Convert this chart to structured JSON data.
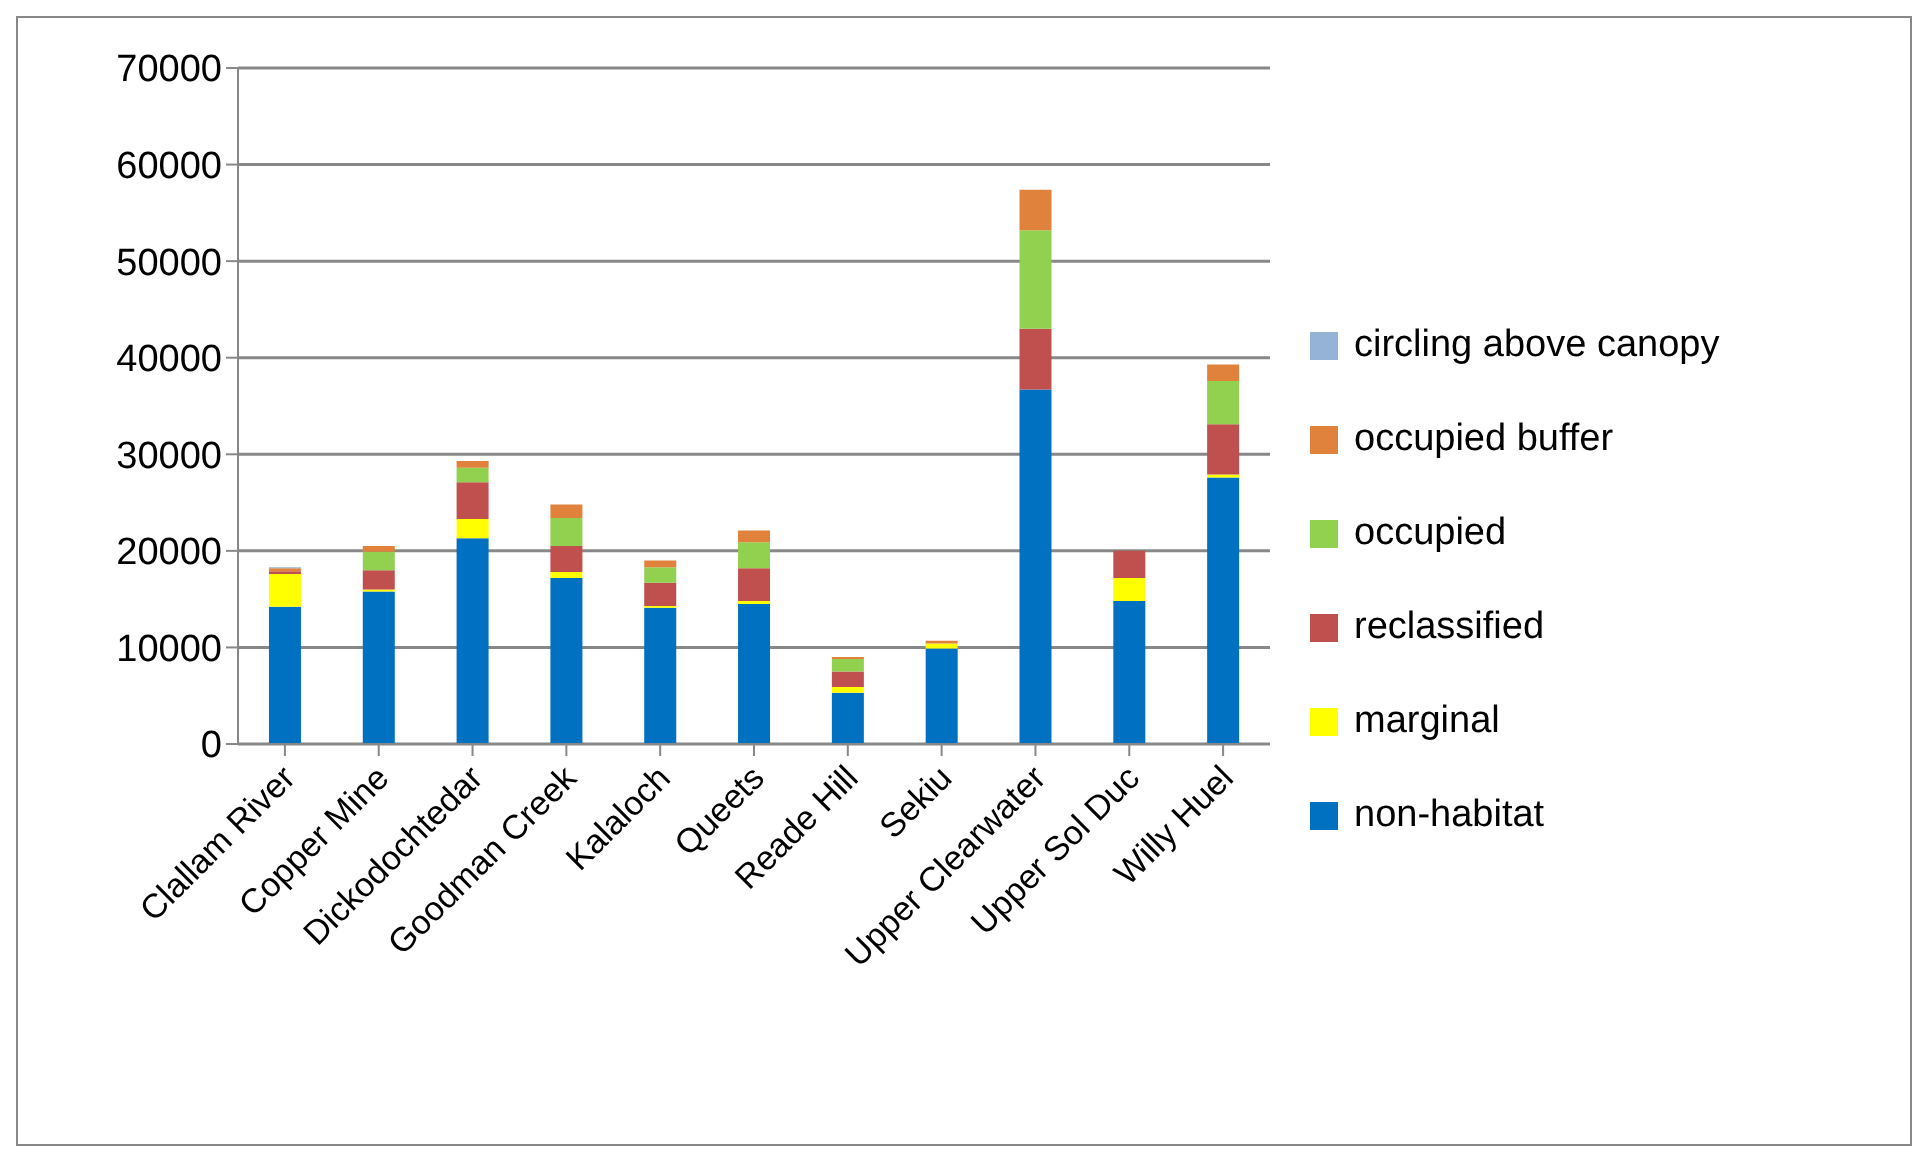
{
  "chart_data": {
    "type": "bar",
    "stacked": true,
    "categories": [
      "Clallam River",
      "Copper Mine",
      "Dickodochtedar",
      "Goodman Creek",
      "Kalaloch",
      "Queets",
      "Reade Hill",
      "Sekiu",
      "Upper Clearwater",
      "Upper Sol Duc",
      "Willy Huel"
    ],
    "series": [
      {
        "name": "non-habitat",
        "color": "#0070c0",
        "values": [
          14200,
          15800,
          21300,
          17200,
          14100,
          14500,
          5300,
          9900,
          36700,
          14800,
          27600
        ]
      },
      {
        "name": "marginal",
        "color": "#ffff00",
        "values": [
          3400,
          200,
          2000,
          600,
          200,
          300,
          600,
          500,
          0,
          2400,
          300
        ]
      },
      {
        "name": "reclassified",
        "color": "#c0504d",
        "values": [
          300,
          2000,
          3800,
          2700,
          2400,
          3400,
          1600,
          0,
          6300,
          2800,
          5200
        ]
      },
      {
        "name": "occupied",
        "color": "#92d050",
        "values": [
          0,
          1900,
          1500,
          2900,
          1600,
          2700,
          1300,
          0,
          10200,
          0,
          4500
        ]
      },
      {
        "name": "occupied buffer",
        "color": "#e0823c",
        "values": [
          300,
          600,
          700,
          1400,
          700,
          1200,
          200,
          300,
          4200,
          0,
          1700
        ]
      },
      {
        "name": "circling above canopy",
        "color": "#95b3d7",
        "values": [
          100,
          0,
          0,
          0,
          0,
          0,
          0,
          0,
          0,
          0,
          0
        ]
      }
    ],
    "ylim": [
      0,
      70000
    ],
    "yticks": [
      0,
      10000,
      20000,
      30000,
      40000,
      50000,
      60000,
      70000
    ],
    "grid": "y",
    "legend": "right"
  }
}
